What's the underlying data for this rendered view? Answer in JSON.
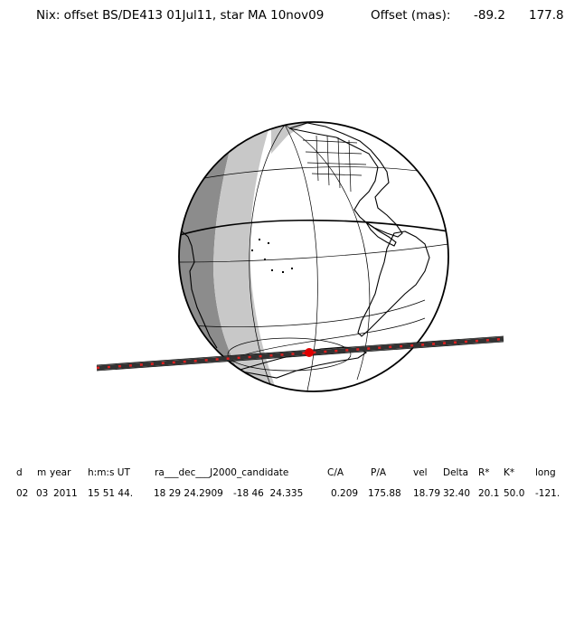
{
  "title": {
    "event": "Nix: offset BS/DE413 01Jul11, star MA 10nov09",
    "offset_label": "Offset (mas):",
    "offset_ra": "-89.2",
    "offset_dec": "177.8"
  },
  "table": {
    "headers": [
      "d",
      "m",
      "year",
      "h:m:s UT",
      "ra___dec___J2000_candidate",
      "C/A",
      "P/A",
      "vel",
      "Delta",
      "R*",
      "K*",
      "long"
    ],
    "values": [
      "02",
      "03",
      "2011",
      "15 51 44.",
      "18 29 24.2909",
      "-18 46  24.335",
      "0.209",
      "175.88",
      "18.79",
      "32.40",
      "20.1",
      "50.0",
      "-121."
    ]
  },
  "colors": {
    "night_shade": "#8c8c8c",
    "twilight_shade": "#c8c8c8",
    "track": "#333333",
    "track_dash": "#e02020",
    "closest_approach_marker": "#e00000"
  },
  "map": {
    "projection": "orthographic",
    "features": [
      "coastlines",
      "country-borders",
      "us-state-borders",
      "meridians",
      "parallels",
      "equator",
      "shadow-path"
    ]
  }
}
